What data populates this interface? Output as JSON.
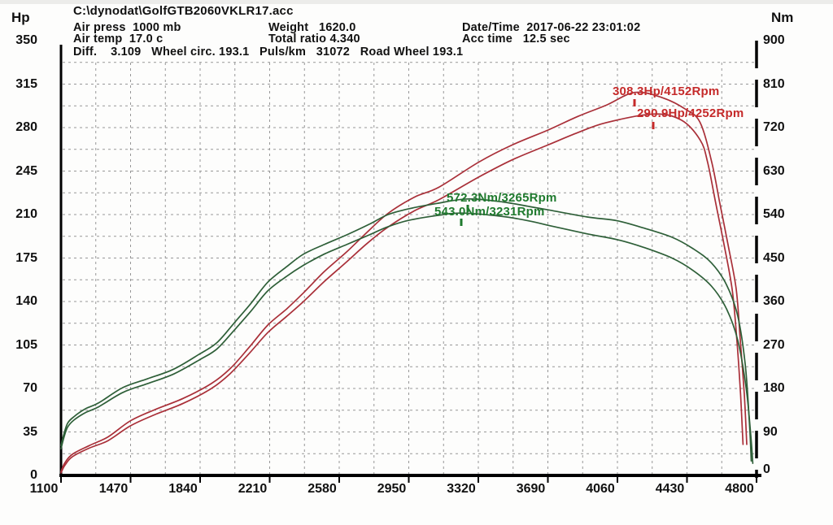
{
  "axes": {
    "hp_title": "Hp",
    "nm_title": "Nm"
  },
  "header": {
    "file_path": "C:\\dynodat\\GolfGTB2060VKLR17.acc",
    "air_press": "Air press  1000 mb",
    "weight": "Weight   1620.0",
    "date_time": "Date/Time  2017-06-22 23:01:02",
    "air_temp": "Air temp  17.0 c",
    "total_ratio": "Total ratio 4.340",
    "acc_time": "Acc time   12.5 sec",
    "diff_row": "Diff.    3.109   Wheel circ. 193.1   Puls/km   31072   Road Wheel 193.1"
  },
  "colors": {
    "red_curve": "#a92f38",
    "red_text": "#c52a2a",
    "green_curve": "#2e5f38",
    "green_text": "#1f7a2e",
    "grid": "#979797",
    "axis": "#000000"
  },
  "chart_data": {
    "type": "line",
    "grid": "dashed, minor lines at half intervals",
    "legend": "none",
    "x_axis": {
      "unit": "Rpm",
      "min": 1100,
      "max": 4800,
      "ticks": [
        1100,
        1470,
        1840,
        2210,
        2580,
        2950,
        3320,
        3690,
        4060,
        4430,
        4800
      ]
    },
    "y_axis_left": {
      "unit": "Hp",
      "min": 0,
      "max": 350,
      "ticks": [
        0,
        35,
        70,
        105,
        140,
        175,
        210,
        245,
        280,
        315,
        350
      ]
    },
    "y_axis_right": {
      "unit": "Nm",
      "min": 0,
      "max": 900,
      "ticks": [
        0,
        90,
        180,
        270,
        360,
        450,
        540,
        630,
        720,
        810,
        900
      ]
    },
    "series": [
      {
        "name": "power-run-1",
        "axis": "left",
        "color_key": "red_curve",
        "peak": {
          "value": 308.3,
          "unit": "Hp",
          "rpm": 4152
        },
        "points": [
          [
            1100,
            3
          ],
          [
            1120,
            10
          ],
          [
            1160,
            17
          ],
          [
            1250,
            24
          ],
          [
            1350,
            31
          ],
          [
            1470,
            44
          ],
          [
            1600,
            53
          ],
          [
            1750,
            62
          ],
          [
            1900,
            74
          ],
          [
            2000,
            86
          ],
          [
            2100,
            103
          ],
          [
            2200,
            121
          ],
          [
            2300,
            134
          ],
          [
            2390,
            147
          ],
          [
            2500,
            164
          ],
          [
            2620,
            180
          ],
          [
            2730,
            196
          ],
          [
            2840,
            211
          ],
          [
            2980,
            224
          ],
          [
            3110,
            232
          ],
          [
            3320,
            252
          ],
          [
            3500,
            266
          ],
          [
            3690,
            278
          ],
          [
            3850,
            289
          ],
          [
            4000,
            298
          ],
          [
            4152,
            308.3
          ],
          [
            4300,
            304
          ],
          [
            4420,
            295
          ],
          [
            4500,
            284
          ],
          [
            4562,
            252
          ],
          [
            4605,
            219
          ],
          [
            4648,
            186
          ],
          [
            4692,
            150
          ],
          [
            4713,
            110
          ],
          [
            4735,
            65
          ],
          [
            4748,
            25
          ]
        ]
      },
      {
        "name": "power-run-2",
        "axis": "left",
        "color_key": "red_curve",
        "peak": {
          "value": 290.9,
          "unit": "Hp",
          "rpm": 4252
        },
        "points": [
          [
            1100,
            2
          ],
          [
            1120,
            8
          ],
          [
            1160,
            15
          ],
          [
            1250,
            22
          ],
          [
            1350,
            28
          ],
          [
            1470,
            40
          ],
          [
            1600,
            49
          ],
          [
            1750,
            58
          ],
          [
            1900,
            70
          ],
          [
            2000,
            82
          ],
          [
            2100,
            98
          ],
          [
            2200,
            115
          ],
          [
            2300,
            128
          ],
          [
            2390,
            140
          ],
          [
            2500,
            156
          ],
          [
            2620,
            172
          ],
          [
            2730,
            187
          ],
          [
            2840,
            200
          ],
          [
            2980,
            213
          ],
          [
            3110,
            222
          ],
          [
            3320,
            240
          ],
          [
            3500,
            254
          ],
          [
            3690,
            266
          ],
          [
            3850,
            276
          ],
          [
            4000,
            284
          ],
          [
            4252,
            290.9
          ],
          [
            4400,
            286
          ],
          [
            4500,
            270
          ],
          [
            4540,
            252
          ],
          [
            4583,
            219
          ],
          [
            4627,
            186
          ],
          [
            4670,
            150
          ],
          [
            4695,
            110
          ],
          [
            4715,
            65
          ],
          [
            4728,
            25
          ]
        ]
      },
      {
        "name": "torque-run-1",
        "axis": "right",
        "color_key": "green_curve",
        "peak": {
          "value": 572.3,
          "unit": "Nm",
          "rpm": 3265
        },
        "points": [
          [
            1100,
            62
          ],
          [
            1115,
            85
          ],
          [
            1135,
            108
          ],
          [
            1170,
            122
          ],
          [
            1230,
            138
          ],
          [
            1300,
            150
          ],
          [
            1430,
            182
          ],
          [
            1560,
            200
          ],
          [
            1700,
            220
          ],
          [
            1840,
            252
          ],
          [
            1930,
            275
          ],
          [
            2020,
            315
          ],
          [
            2110,
            356
          ],
          [
            2200,
            400
          ],
          [
            2300,
            432
          ],
          [
            2390,
            458
          ],
          [
            2500,
            478
          ],
          [
            2620,
            498
          ],
          [
            2740,
            520
          ],
          [
            2840,
            540
          ],
          [
            2950,
            552
          ],
          [
            3100,
            563
          ],
          [
            3265,
            572.3
          ],
          [
            3450,
            566
          ],
          [
            3600,
            556
          ],
          [
            3700,
            549
          ],
          [
            3900,
            535
          ],
          [
            4060,
            527
          ],
          [
            4200,
            512
          ],
          [
            4350,
            493
          ],
          [
            4460,
            470
          ],
          [
            4560,
            440
          ],
          [
            4640,
            395
          ],
          [
            4700,
            330
          ],
          [
            4740,
            230
          ],
          [
            4762,
            110
          ],
          [
            4772,
            30
          ]
        ]
      },
      {
        "name": "torque-run-2",
        "axis": "right",
        "color_key": "green_curve",
        "peak": {
          "value": 543.0,
          "unit": "Nm",
          "rpm": 3231
        },
        "points": [
          [
            1100,
            55
          ],
          [
            1115,
            78
          ],
          [
            1135,
            100
          ],
          [
            1170,
            115
          ],
          [
            1230,
            130
          ],
          [
            1300,
            142
          ],
          [
            1430,
            172
          ],
          [
            1560,
            190
          ],
          [
            1700,
            210
          ],
          [
            1840,
            240
          ],
          [
            1930,
            262
          ],
          [
            2020,
            300
          ],
          [
            2110,
            340
          ],
          [
            2200,
            382
          ],
          [
            2300,
            412
          ],
          [
            2390,
            435
          ],
          [
            2500,
            458
          ],
          [
            2620,
            478
          ],
          [
            2740,
            498
          ],
          [
            2840,
            515
          ],
          [
            2950,
            528
          ],
          [
            3100,
            538
          ],
          [
            3231,
            543
          ],
          [
            3450,
            536
          ],
          [
            3600,
            526
          ],
          [
            3700,
            517
          ],
          [
            3900,
            500
          ],
          [
            4060,
            488
          ],
          [
            4200,
            472
          ],
          [
            4350,
            450
          ],
          [
            4460,
            425
          ],
          [
            4560,
            392
          ],
          [
            4640,
            345
          ],
          [
            4700,
            280
          ],
          [
            4745,
            180
          ],
          [
            4770,
            80
          ],
          [
            4780,
            25
          ]
        ]
      }
    ],
    "annotations": [
      {
        "text": "308.3Hp/4152Rpm",
        "color_key": "red_text",
        "rpm": 4152,
        "value": 308.3,
        "unit": "Hp"
      },
      {
        "text": "290.9Hp/4252Rpm",
        "color_key": "red_text",
        "rpm": 4252,
        "value": 290.9,
        "unit": "Hp"
      },
      {
        "text": "572.3Nm/3265Rpm",
        "color_key": "green_text",
        "rpm": 3265,
        "value": 572.3,
        "unit": "Nm"
      },
      {
        "text": "543.0Nm/3231Rpm",
        "color_key": "green_text",
        "rpm": 3231,
        "value": 543.0,
        "unit": "Nm"
      }
    ]
  }
}
